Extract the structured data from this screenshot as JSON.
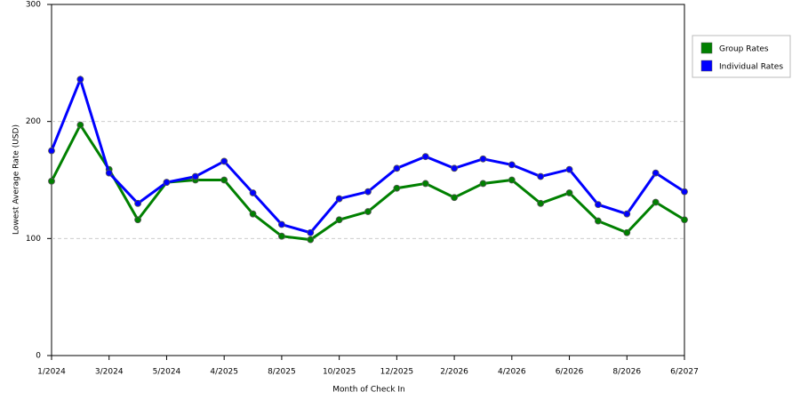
{
  "chart_data": {
    "type": "line",
    "x_label": "Month of Check In",
    "y_label": "Lowest Average Rate (USD)",
    "categories": [
      "1/2024",
      null,
      "3/2024",
      null,
      "5/2024",
      null,
      "4/2025",
      null,
      "8/2025",
      null,
      "10/2025",
      null,
      "12/2025",
      null,
      "2/2026",
      null,
      "4/2026",
      null,
      "6/2026",
      null,
      "8/2026",
      null,
      "6/2027"
    ],
    "series": [
      {
        "name": "Group Rates",
        "color": "#008000",
        "values": [
          149,
          197,
          159,
          116,
          148,
          150,
          150,
          121,
          102,
          99,
          116,
          123,
          143,
          147,
          135,
          147,
          150,
          130,
          139,
          115,
          105,
          131,
          116
        ]
      },
      {
        "name": "Individual Rates",
        "color": "#0000ff",
        "values": [
          175,
          236,
          156,
          130,
          148,
          153,
          166,
          139,
          112,
          105,
          134,
          140,
          160,
          170,
          160,
          168,
          163,
          153,
          159,
          129,
          121,
          156,
          140
        ]
      }
    ],
    "ylim": [
      0,
      300
    ],
    "yticks": [
      0,
      100,
      200,
      300
    ],
    "grid": true,
    "legend": "right"
  }
}
